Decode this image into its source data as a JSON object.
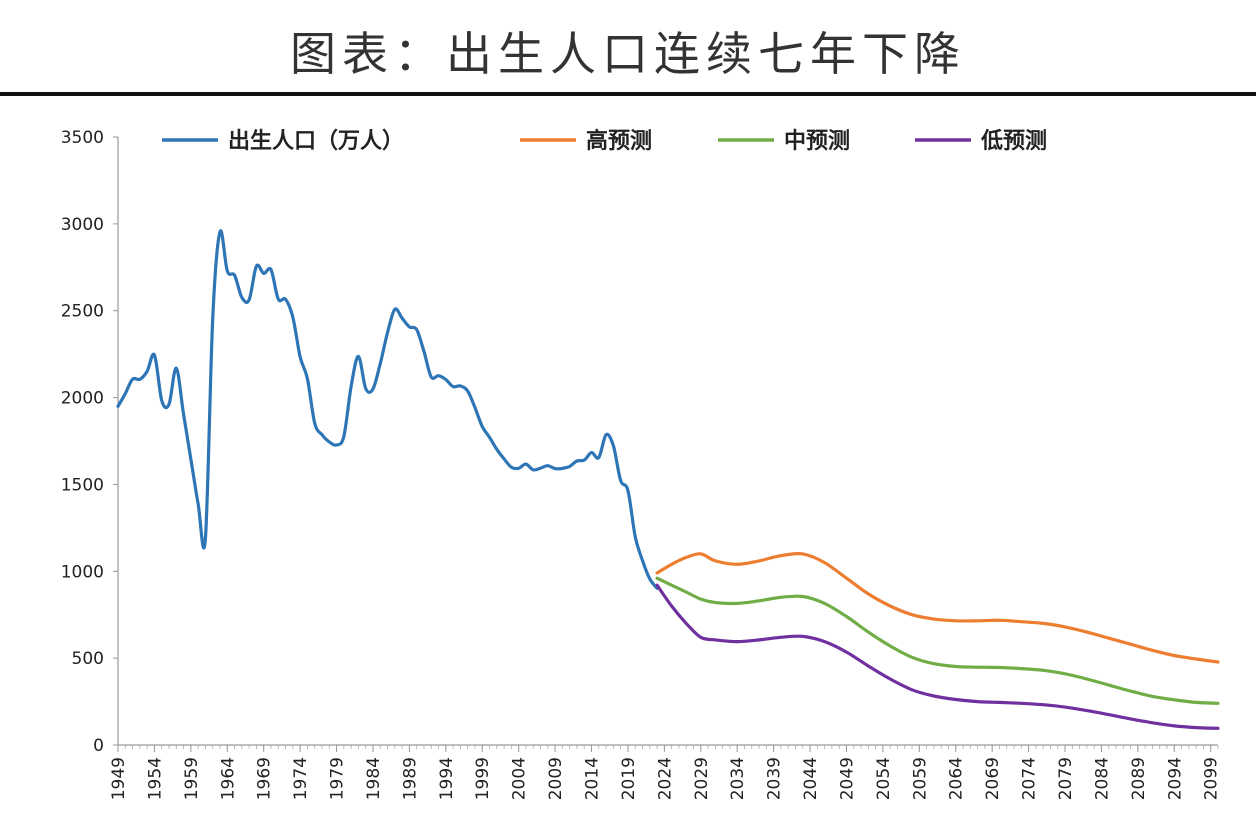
{
  "title": "图表：出生人口连续七年下降",
  "chart_data": {
    "type": "line",
    "ylim": [
      0,
      3500
    ],
    "yticks": [
      0,
      500,
      1000,
      1500,
      2000,
      2500,
      3000,
      3500
    ],
    "xlim": [
      1949,
      2100
    ],
    "xticks": [
      1949,
      1954,
      1959,
      1964,
      1969,
      1974,
      1979,
      1984,
      1989,
      1994,
      1999,
      2004,
      2009,
      2014,
      2019,
      2024,
      2029,
      2034,
      2039,
      2044,
      2049,
      2054,
      2059,
      2064,
      2069,
      2074,
      2079,
      2084,
      2089,
      2094,
      2099
    ],
    "legend_position": "top",
    "grid": false,
    "series": [
      {
        "name": "出生人口（万人）",
        "color": "#2E75B6",
        "x": [
          1949,
          1950,
          1951,
          1952,
          1953,
          1954,
          1955,
          1956,
          1957,
          1958,
          1959,
          1960,
          1961,
          1962,
          1963,
          1964,
          1965,
          1966,
          1967,
          1968,
          1969,
          1970,
          1971,
          1972,
          1973,
          1974,
          1975,
          1976,
          1977,
          1978,
          1979,
          1980,
          1981,
          1982,
          1983,
          1984,
          1985,
          1986,
          1987,
          1988,
          1989,
          1990,
          1991,
          1992,
          1993,
          1994,
          1995,
          1996,
          1997,
          1998,
          1999,
          2000,
          2001,
          2002,
          2003,
          2004,
          2005,
          2006,
          2007,
          2008,
          2009,
          2010,
          2011,
          2012,
          2013,
          2014,
          2015,
          2016,
          2017,
          2018,
          2019,
          2020,
          2021,
          2022,
          2023
        ],
        "values": [
          1950,
          2023,
          2106,
          2105,
          2151,
          2245,
          1984,
          1961,
          2169,
          1903,
          1647,
          1389,
          1189,
          2451,
          2954,
          2729,
          2704,
          2577,
          2563,
          2757,
          2715,
          2736,
          2567,
          2566,
          2463,
          2235,
          2109,
          1853,
          1786,
          1745,
          1727,
          1776,
          2064,
          2237,
          2052,
          2050,
          2196,
          2374,
          2508,
          2457,
          2407,
          2391,
          2265,
          2119,
          2126,
          2104,
          2063,
          2067,
          2038,
          1942,
          1834,
          1771,
          1702,
          1647,
          1599,
          1593,
          1617,
          1584,
          1594,
          1608,
          1591,
          1592,
          1604,
          1635,
          1640,
          1683,
          1655,
          1786,
          1723,
          1523,
          1465,
          1200,
          1062,
          956,
          902
        ]
      },
      {
        "name": "高预测",
        "color": "#ED7D31",
        "x": [
          2023,
          2025,
          2027,
          2029,
          2031,
          2034,
          2037,
          2040,
          2043,
          2046,
          2049,
          2052,
          2055,
          2058,
          2061,
          2064,
          2067,
          2070,
          2073,
          2076,
          2079,
          2082,
          2085,
          2088,
          2091,
          2094,
          2097,
          2100
        ],
        "values": [
          990,
          1040,
          1080,
          1100,
          1060,
          1040,
          1060,
          1090,
          1100,
          1050,
          960,
          870,
          800,
          750,
          725,
          715,
          715,
          718,
          710,
          700,
          680,
          650,
          615,
          580,
          545,
          515,
          495,
          478
        ]
      },
      {
        "name": "中预测",
        "color": "#70AD47",
        "x": [
          2023,
          2025,
          2027,
          2029,
          2031,
          2034,
          2037,
          2040,
          2043,
          2046,
          2049,
          2052,
          2055,
          2058,
          2061,
          2064,
          2067,
          2070,
          2073,
          2076,
          2079,
          2082,
          2085,
          2088,
          2091,
          2094,
          2097,
          2100
        ],
        "values": [
          960,
          920,
          880,
          840,
          820,
          815,
          830,
          850,
          855,
          815,
          740,
          650,
          570,
          505,
          468,
          452,
          448,
          446,
          440,
          430,
          410,
          380,
          345,
          310,
          280,
          260,
          245,
          240
        ]
      },
      {
        "name": "低预测",
        "color": "#7030A0",
        "x": [
          2023,
          2025,
          2027,
          2029,
          2031,
          2034,
          2037,
          2040,
          2043,
          2046,
          2049,
          2052,
          2055,
          2058,
          2061,
          2064,
          2067,
          2070,
          2073,
          2076,
          2079,
          2082,
          2085,
          2088,
          2091,
          2094,
          2097,
          2100
        ],
        "values": [
          920,
          800,
          700,
          620,
          605,
          595,
          605,
          620,
          625,
          595,
          535,
          455,
          380,
          318,
          282,
          262,
          250,
          245,
          240,
          232,
          218,
          198,
          175,
          150,
          128,
          110,
          100,
          96
        ]
      }
    ]
  }
}
